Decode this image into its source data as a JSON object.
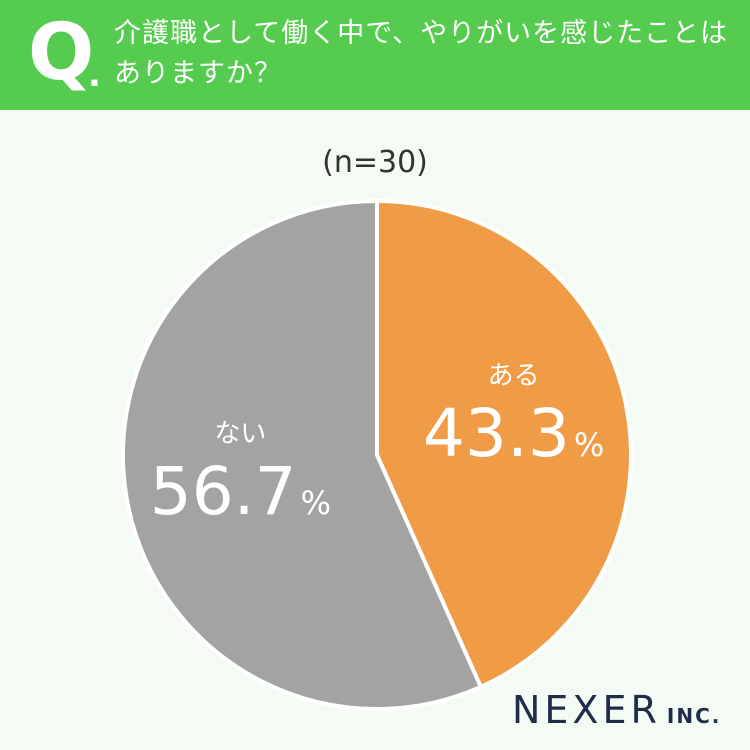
{
  "header": {
    "q_letter": "Q",
    "q_dot": ".",
    "question": "介護職として働く中で、やりがいを感じたことはありますか？",
    "bg_color": "#55cc4f"
  },
  "sample_label": "(n=30)",
  "chart_data": {
    "type": "pie",
    "start": "top",
    "direction": "clockwise",
    "slices": [
      {
        "label": "ある",
        "value": 43.3,
        "display": "43.3",
        "unit": "%",
        "color": "#f09c47"
      },
      {
        "label": "ない",
        "value": 56.7,
        "display": "56.7",
        "unit": "%",
        "color": "#a3a3a3"
      }
    ]
  },
  "logo": {
    "main": "NEXER",
    "sub": "INC."
  }
}
